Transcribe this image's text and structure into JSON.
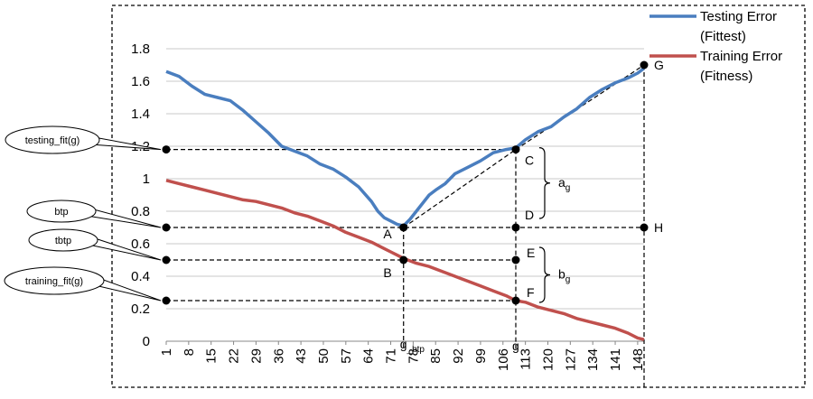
{
  "chart_data": {
    "type": "line",
    "xlim": [
      1,
      150
    ],
    "ylim": [
      0,
      1.8
    ],
    "y_ticks": [
      "0",
      "0.2",
      "0.4",
      "0.6",
      "0.8",
      "1",
      "1.2",
      "1.4",
      "1.6",
      "1.8"
    ],
    "x_ticks": [
      "1",
      "8",
      "15",
      "22",
      "29",
      "36",
      "43",
      "50",
      "57",
      "64",
      "71",
      "78",
      "85",
      "92",
      "99",
      "106",
      "113",
      "120",
      "127",
      "134",
      "141",
      "148"
    ],
    "grid": "horizontal",
    "legend_position": "top-right",
    "series": [
      {
        "name": "Testing Error (Fittest)",
        "legend_lines": [
          "Testing Error",
          "(Fittest)"
        ],
        "color": "#4a7ebf",
        "points": [
          [
            1,
            1.66
          ],
          [
            5,
            1.63
          ],
          [
            9,
            1.57
          ],
          [
            13,
            1.52
          ],
          [
            17,
            1.5
          ],
          [
            21,
            1.48
          ],
          [
            25,
            1.42
          ],
          [
            29,
            1.35
          ],
          [
            33,
            1.28
          ],
          [
            37,
            1.2
          ],
          [
            41,
            1.17
          ],
          [
            45,
            1.14
          ],
          [
            49,
            1.09
          ],
          [
            53,
            1.06
          ],
          [
            57,
            1.01
          ],
          [
            61,
            0.95
          ],
          [
            65,
            0.86
          ],
          [
            67,
            0.8
          ],
          [
            69,
            0.76
          ],
          [
            71,
            0.74
          ],
          [
            73,
            0.72
          ],
          [
            75,
            0.71
          ],
          [
            77,
            0.75
          ],
          [
            79,
            0.8
          ],
          [
            81,
            0.85
          ],
          [
            83,
            0.9
          ],
          [
            85,
            0.93
          ],
          [
            88,
            0.97
          ],
          [
            91,
            1.03
          ],
          [
            95,
            1.07
          ],
          [
            99,
            1.11
          ],
          [
            103,
            1.16
          ],
          [
            107,
            1.18
          ],
          [
            110,
            1.19
          ],
          [
            113,
            1.24
          ],
          [
            117,
            1.29
          ],
          [
            121,
            1.32
          ],
          [
            125,
            1.38
          ],
          [
            129,
            1.43
          ],
          [
            133,
            1.5
          ],
          [
            137,
            1.55
          ],
          [
            141,
            1.59
          ],
          [
            145,
            1.62
          ],
          [
            148,
            1.65
          ],
          [
            150,
            1.68
          ]
        ]
      },
      {
        "name": "Training Error (Fitness)",
        "legend_lines": [
          "Training Error",
          "(Fitness)"
        ],
        "color": "#c0504d",
        "points": [
          [
            1,
            0.99
          ],
          [
            5,
            0.97
          ],
          [
            9,
            0.95
          ],
          [
            13,
            0.93
          ],
          [
            17,
            0.91
          ],
          [
            21,
            0.89
          ],
          [
            25,
            0.87
          ],
          [
            29,
            0.86
          ],
          [
            33,
            0.84
          ],
          [
            37,
            0.82
          ],
          [
            41,
            0.79
          ],
          [
            45,
            0.77
          ],
          [
            49,
            0.74
          ],
          [
            53,
            0.71
          ],
          [
            57,
            0.67
          ],
          [
            61,
            0.64
          ],
          [
            65,
            0.61
          ],
          [
            69,
            0.57
          ],
          [
            71,
            0.55
          ],
          [
            73,
            0.53
          ],
          [
            75,
            0.51
          ],
          [
            79,
            0.48
          ],
          [
            83,
            0.46
          ],
          [
            87,
            0.43
          ],
          [
            91,
            0.4
          ],
          [
            95,
            0.37
          ],
          [
            99,
            0.34
          ],
          [
            103,
            0.31
          ],
          [
            107,
            0.28
          ],
          [
            110,
            0.25
          ],
          [
            113,
            0.24
          ],
          [
            117,
            0.21
          ],
          [
            121,
            0.19
          ],
          [
            125,
            0.17
          ],
          [
            129,
            0.14
          ],
          [
            133,
            0.12
          ],
          [
            137,
            0.1
          ],
          [
            141,
            0.08
          ],
          [
            145,
            0.05
          ],
          [
            148,
            0.02
          ],
          [
            150,
            0.01
          ]
        ]
      }
    ],
    "g_btp_x": 75,
    "g_x": 110,
    "x_end": 150,
    "annotations": {
      "testing_fit_g": {
        "label": "testing_fit(g)",
        "y": 1.18
      },
      "btp": {
        "label": "btp",
        "y": 0.7
      },
      "tbtp": {
        "label": "tbtp",
        "y": 0.5
      },
      "training_fit_g": {
        "label": "training_fit(g)",
        "y": 0.25
      },
      "A": {
        "label": "A",
        "x": 75,
        "y": 0.7
      },
      "B": {
        "label": "B",
        "x": 75,
        "y": 0.5
      },
      "C": {
        "label": "C",
        "x": 110,
        "y": 1.18
      },
      "D": {
        "label": "D",
        "x": 110,
        "y": 0.7
      },
      "E": {
        "label": "E",
        "x": 110,
        "y": 0.5
      },
      "F": {
        "label": "F",
        "x": 110,
        "y": 0.25
      },
      "G": {
        "label": "G",
        "x": 150,
        "y": 1.7
      },
      "H": {
        "label": "H",
        "x": 150,
        "y": 0.7
      },
      "a_g": {
        "base": "a",
        "sub": "g"
      },
      "b_g": {
        "base": "b",
        "sub": "g"
      },
      "g_btp": {
        "base": "g",
        "sub": "_btp"
      },
      "g": {
        "label": "g"
      }
    }
  }
}
